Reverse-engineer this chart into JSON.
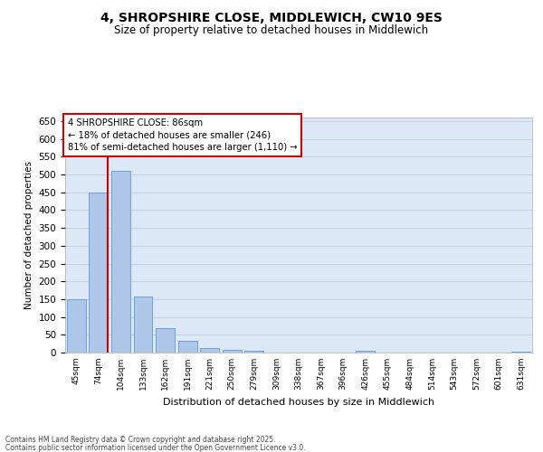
{
  "title": "4, SHROPSHIRE CLOSE, MIDDLEWICH, CW10 9ES",
  "subtitle": "Size of property relative to detached houses in Middlewich",
  "xlabel": "Distribution of detached houses by size in Middlewich",
  "ylabel": "Number of detached properties",
  "categories": [
    "45sqm",
    "74sqm",
    "104sqm",
    "133sqm",
    "162sqm",
    "191sqm",
    "221sqm",
    "250sqm",
    "279sqm",
    "309sqm",
    "338sqm",
    "367sqm",
    "396sqm",
    "426sqm",
    "455sqm",
    "484sqm",
    "514sqm",
    "543sqm",
    "572sqm",
    "601sqm",
    "631sqm"
  ],
  "values": [
    150,
    450,
    510,
    158,
    68,
    32,
    13,
    7,
    4,
    0,
    0,
    0,
    0,
    5,
    0,
    0,
    0,
    0,
    0,
    0,
    3
  ],
  "bar_color": "#aec6e8",
  "bar_edgecolor": "#5b9bd5",
  "grid_color": "#c0d0e8",
  "background_color": "#dce8f5",
  "vline_color": "#cc0000",
  "vline_pos": 1.43,
  "annotation_text": "4 SHROPSHIRE CLOSE: 86sqm\n← 18% of detached houses are smaller (246)\n81% of semi-detached houses are larger (1,110) →",
  "annotation_box_color": "#cc0000",
  "ylim": [
    0,
    660
  ],
  "yticks": [
    0,
    50,
    100,
    150,
    200,
    250,
    300,
    350,
    400,
    450,
    500,
    550,
    600,
    650
  ],
  "footer_line1": "Contains HM Land Registry data © Crown copyright and database right 2025.",
  "footer_line2": "Contains public sector information licensed under the Open Government Licence v3.0."
}
